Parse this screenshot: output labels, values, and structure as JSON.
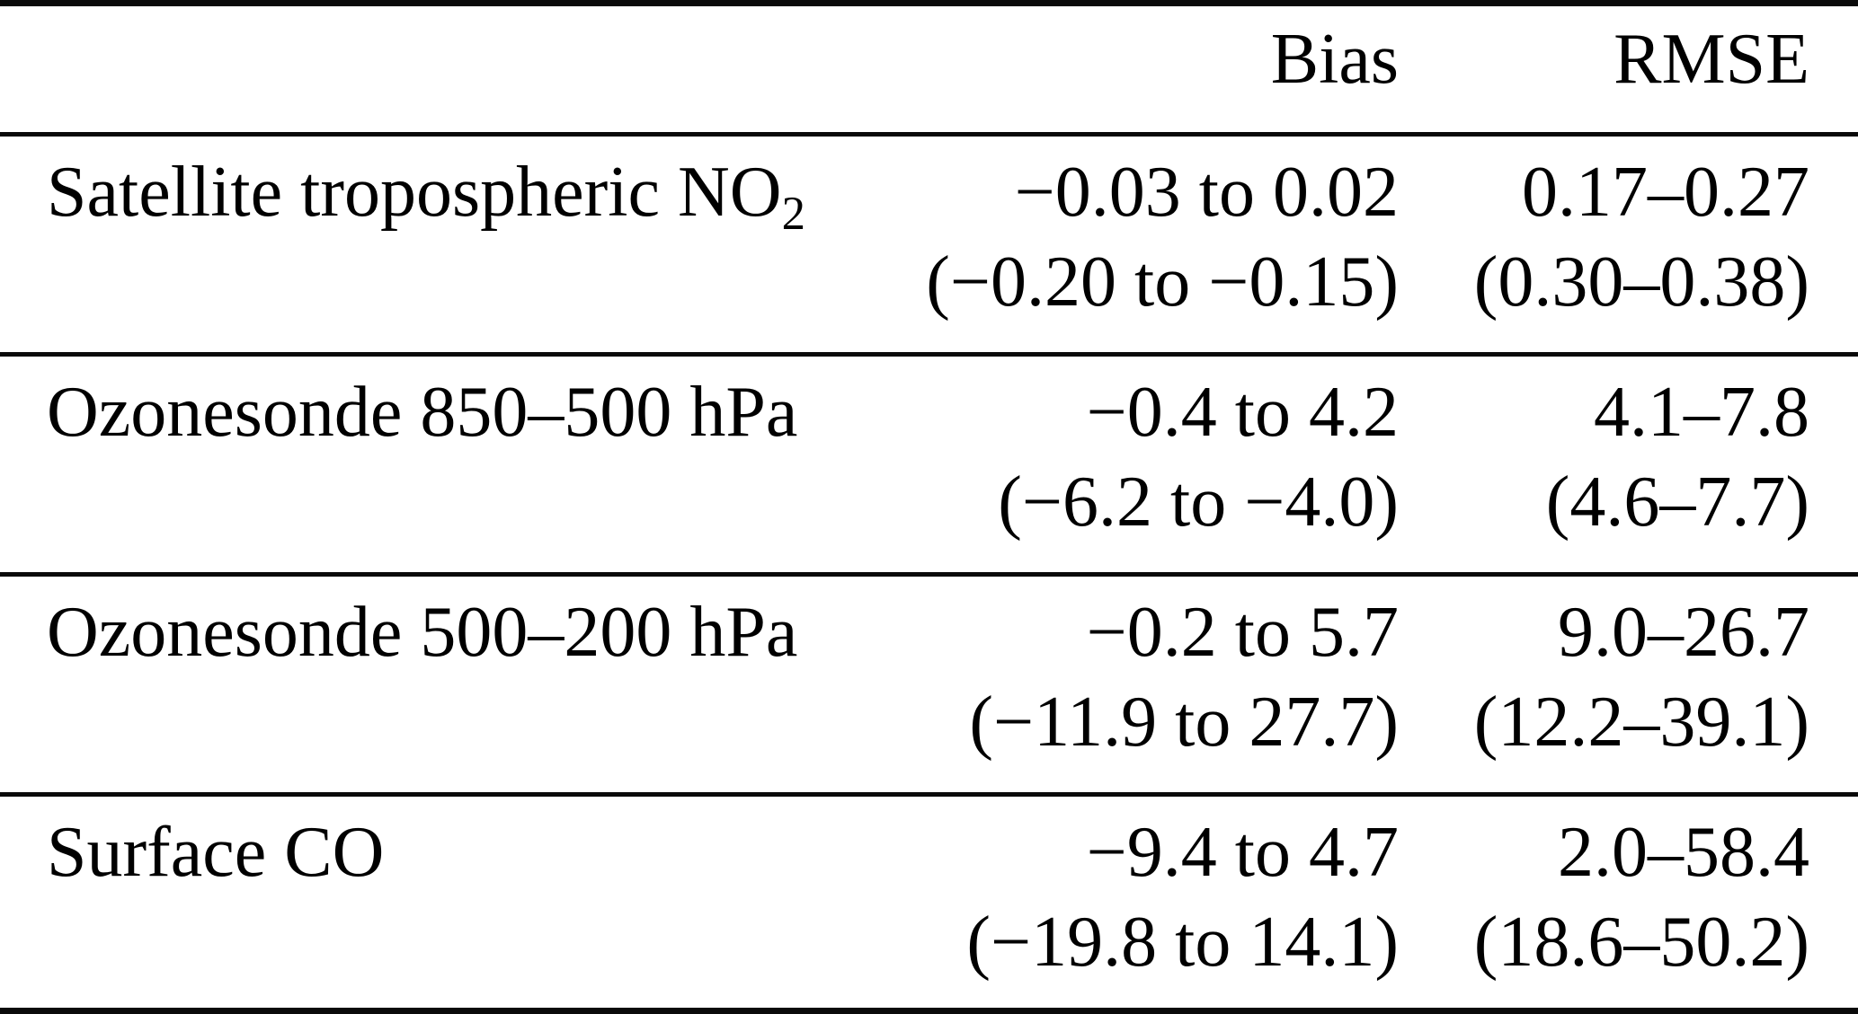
{
  "table": {
    "columns": {
      "bias": "Bias",
      "rmse": "RMSE"
    },
    "rows": [
      {
        "label": "Satellite tropospheric NO",
        "label_sub": "2",
        "bias_main": "−0.03 to 0.02",
        "bias_paren": "(−0.20 to −0.15)",
        "rmse_main": "0.17–0.27",
        "rmse_paren": "(0.30–0.38)"
      },
      {
        "label": "Ozonesonde 850–500 hPa",
        "bias_main": "−0.4 to 4.2",
        "bias_paren": "(−6.2 to −4.0)",
        "rmse_main": "4.1–7.8",
        "rmse_paren": "(4.6–7.7)"
      },
      {
        "label": "Ozonesonde 500–200 hPa",
        "bias_main": "−0.2 to 5.7",
        "bias_paren": "(−11.9 to 27.7)",
        "rmse_main": "9.0–26.7",
        "rmse_paren": "(12.2–39.1)"
      },
      {
        "label": "Surface CO",
        "bias_main": "−9.4 to 4.7",
        "bias_paren": "(−19.8 to 14.1)",
        "rmse_main": "2.0–58.4",
        "rmse_paren": "(18.6–50.2)"
      }
    ]
  },
  "colors": {
    "text": "#000000",
    "rule": "#0a0a0a",
    "background": "#ffffff"
  }
}
